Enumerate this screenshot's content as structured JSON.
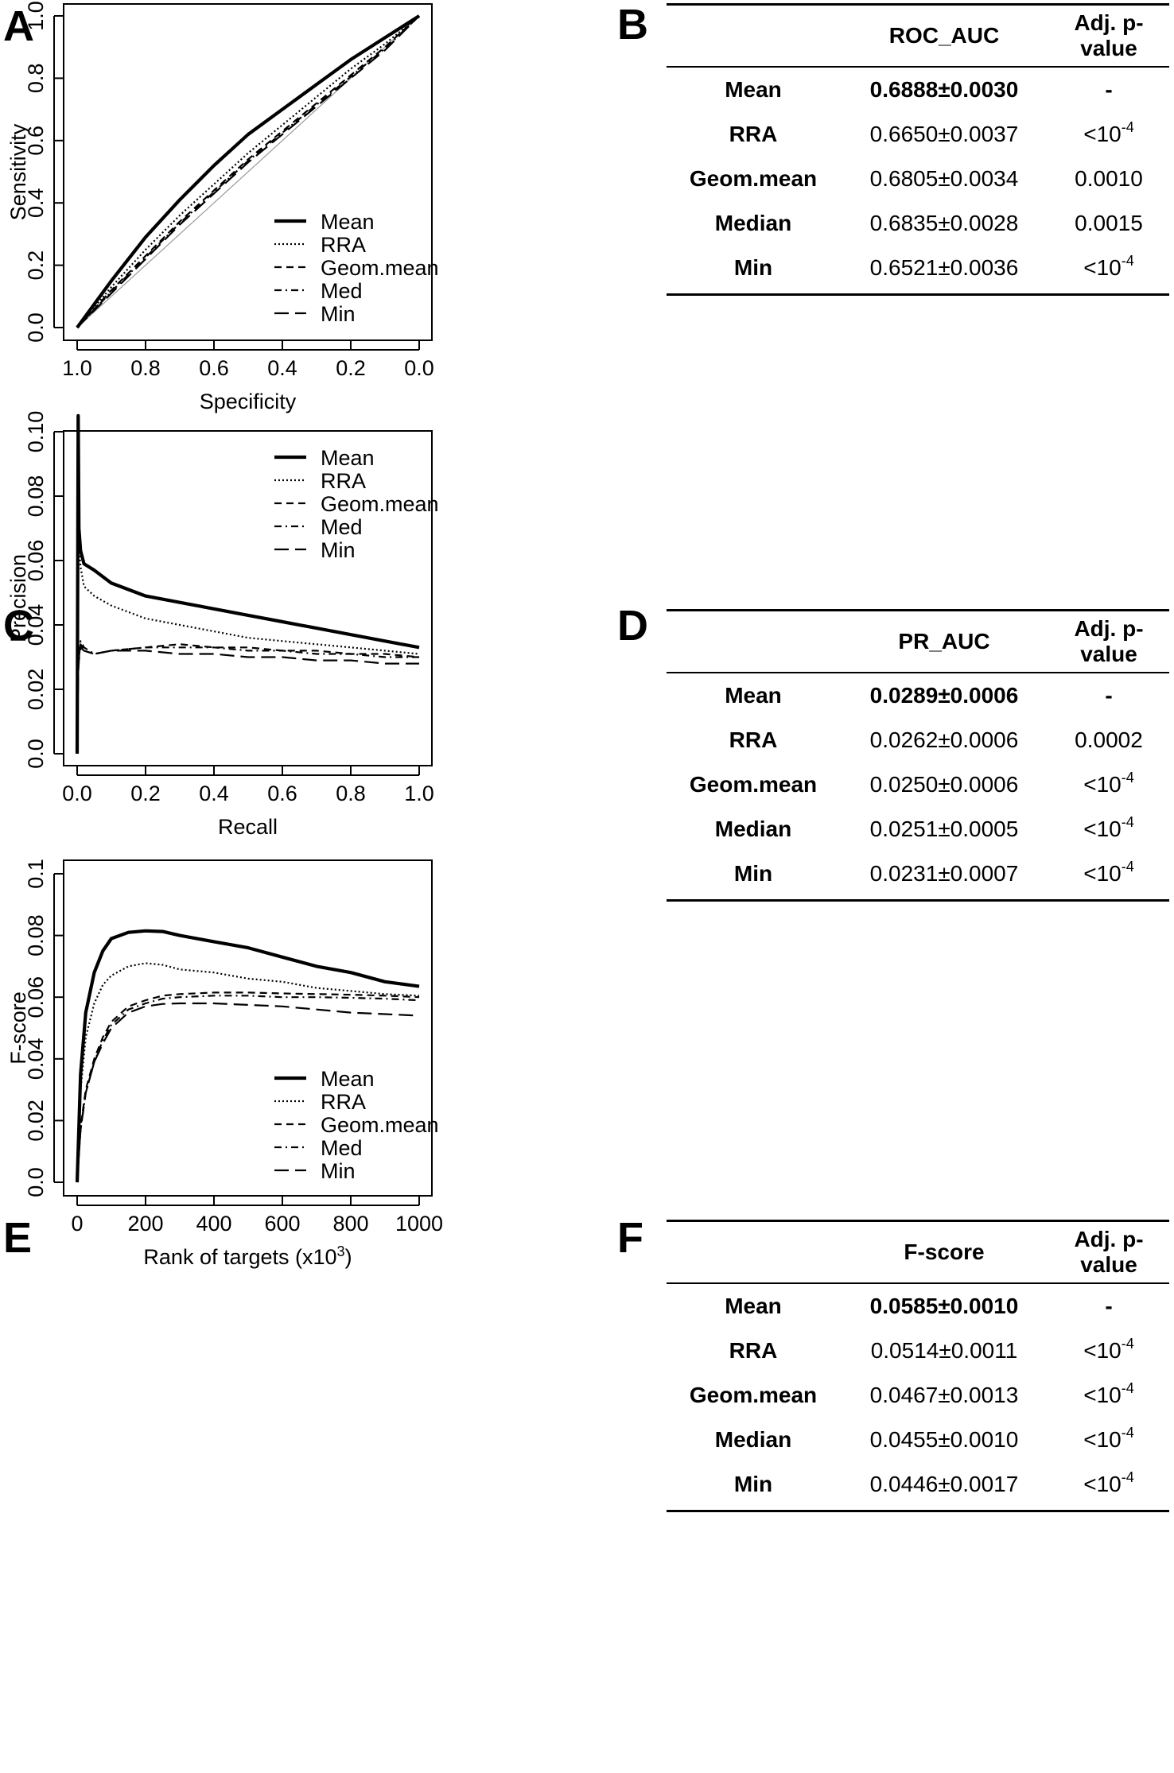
{
  "panels": {
    "A": "A",
    "B": "B",
    "C": "C",
    "D": "D",
    "E": "E",
    "F": "F"
  },
  "chart_data": [
    {
      "id": "A",
      "type": "line",
      "xlabel": "Specificity",
      "ylabel": "Sensitivity",
      "xlim": [
        1.0,
        0.0
      ],
      "ylim": [
        0.0,
        1.0
      ],
      "xticks": [
        "1.0",
        "0.8",
        "0.6",
        "0.4",
        "0.2",
        "0.0"
      ],
      "yticks": [
        "0.0",
        "0.2",
        "0.4",
        "0.6",
        "0.8",
        "1.0"
      ],
      "legend_position": "bottom-right",
      "reference_line": true,
      "x": [
        1.0,
        0.9,
        0.8,
        0.7,
        0.6,
        0.5,
        0.4,
        0.3,
        0.2,
        0.1,
        0.0
      ],
      "series": [
        {
          "name": "Mean",
          "style": "solid-thick",
          "values": [
            0.0,
            0.15,
            0.29,
            0.41,
            0.52,
            0.62,
            0.7,
            0.78,
            0.86,
            0.93,
            1.0
          ]
        },
        {
          "name": "RRA",
          "style": "dotted",
          "values": [
            0.0,
            0.13,
            0.25,
            0.36,
            0.46,
            0.56,
            0.65,
            0.74,
            0.83,
            0.91,
            1.0
          ]
        },
        {
          "name": "Geom.mean",
          "style": "dashed",
          "values": [
            0.0,
            0.12,
            0.23,
            0.34,
            0.44,
            0.54,
            0.63,
            0.72,
            0.81,
            0.9,
            1.0
          ]
        },
        {
          "name": "Med",
          "style": "dashdot",
          "values": [
            0.0,
            0.115,
            0.225,
            0.335,
            0.435,
            0.535,
            0.625,
            0.715,
            0.805,
            0.895,
            1.0
          ]
        },
        {
          "name": "Min",
          "style": "longdash",
          "values": [
            0.0,
            0.11,
            0.22,
            0.33,
            0.43,
            0.53,
            0.62,
            0.71,
            0.8,
            0.89,
            1.0
          ]
        }
      ]
    },
    {
      "id": "C",
      "type": "line",
      "xlabel": "Recall",
      "ylabel": "Precision",
      "xlim": [
        0.0,
        1.0
      ],
      "ylim": [
        0.0,
        0.1
      ],
      "xticks": [
        "0.0",
        "0.2",
        "0.4",
        "0.6",
        "0.8",
        "1.0"
      ],
      "yticks": [
        "0.0",
        "0.02",
        "0.04",
        "0.06",
        "0.08",
        "0.10"
      ],
      "legend_position": "top-right",
      "x": [
        0.0,
        0.003,
        0.005,
        0.01,
        0.02,
        0.05,
        0.1,
        0.2,
        0.3,
        0.4,
        0.5,
        0.6,
        0.7,
        0.8,
        0.9,
        1.0
      ],
      "series": [
        {
          "name": "Mean",
          "style": "solid-thick",
          "values": [
            0.0,
            0.105,
            0.07,
            0.063,
            0.059,
            0.057,
            0.053,
            0.049,
            0.047,
            0.045,
            0.043,
            0.041,
            0.039,
            0.037,
            0.035,
            0.033
          ]
        },
        {
          "name": "RRA",
          "style": "dotted",
          "values": [
            0.0,
            0.09,
            0.065,
            0.058,
            0.052,
            0.049,
            0.046,
            0.042,
            0.04,
            0.038,
            0.036,
            0.035,
            0.034,
            0.033,
            0.032,
            0.031
          ]
        },
        {
          "name": "Geom.mean",
          "style": "dashed",
          "values": [
            0.0,
            0.026,
            0.03,
            0.034,
            0.032,
            0.031,
            0.032,
            0.033,
            0.034,
            0.033,
            0.033,
            0.032,
            0.032,
            0.031,
            0.031,
            0.03
          ]
        },
        {
          "name": "Med",
          "style": "dashdot",
          "values": [
            0.0,
            0.027,
            0.031,
            0.035,
            0.033,
            0.031,
            0.032,
            0.033,
            0.033,
            0.033,
            0.032,
            0.032,
            0.031,
            0.031,
            0.03,
            0.03
          ]
        },
        {
          "name": "Min",
          "style": "longdash",
          "values": [
            0.0,
            0.025,
            0.029,
            0.033,
            0.032,
            0.031,
            0.032,
            0.032,
            0.031,
            0.031,
            0.03,
            0.03,
            0.029,
            0.029,
            0.028,
            0.028
          ]
        }
      ]
    },
    {
      "id": "E",
      "type": "line",
      "xlabel": "Rank of targets (x10",
      "xlabel_sup": "3",
      "xlabel_end": ")",
      "ylabel": "F-score",
      "xlim": [
        0,
        1000
      ],
      "ylim": [
        0.0,
        0.1
      ],
      "xticks": [
        "0",
        "200",
        "400",
        "600",
        "800",
        "1000"
      ],
      "yticks": [
        "0.0",
        "0.02",
        "0.04",
        "0.06",
        "0.08",
        "0.1"
      ],
      "legend_position": "bottom-right",
      "x": [
        0,
        10,
        25,
        50,
        75,
        100,
        150,
        200,
        250,
        300,
        400,
        500,
        600,
        700,
        800,
        900,
        1000
      ],
      "series": [
        {
          "name": "Mean",
          "style": "solid-thick",
          "values": [
            0.0,
            0.035,
            0.055,
            0.068,
            0.075,
            0.079,
            0.081,
            0.0815,
            0.0813,
            0.08,
            0.078,
            0.076,
            0.073,
            0.07,
            0.068,
            0.065,
            0.0635
          ]
        },
        {
          "name": "RRA",
          "style": "dotted",
          "values": [
            0.0,
            0.03,
            0.047,
            0.058,
            0.064,
            0.067,
            0.07,
            0.071,
            0.0705,
            0.069,
            0.068,
            0.066,
            0.065,
            0.063,
            0.062,
            0.061,
            0.0605
          ]
        },
        {
          "name": "Geom.mean",
          "style": "dashed",
          "values": [
            0.0,
            0.018,
            0.03,
            0.04,
            0.047,
            0.052,
            0.057,
            0.059,
            0.0605,
            0.061,
            0.0615,
            0.0615,
            0.0612,
            0.061,
            0.0608,
            0.0605,
            0.06
          ]
        },
        {
          "name": "Med",
          "style": "dashdot",
          "values": [
            0.0,
            0.017,
            0.029,
            0.039,
            0.046,
            0.051,
            0.056,
            0.058,
            0.0595,
            0.06,
            0.0605,
            0.0605,
            0.06,
            0.06,
            0.0598,
            0.0595,
            0.059
          ]
        },
        {
          "name": "Min",
          "style": "longdash",
          "values": [
            0.0,
            0.017,
            0.029,
            0.039,
            0.045,
            0.05,
            0.055,
            0.057,
            0.0578,
            0.058,
            0.058,
            0.0575,
            0.057,
            0.056,
            0.055,
            0.0545,
            0.054
          ]
        }
      ]
    }
  ],
  "tables": {
    "B": {
      "header": [
        "",
        "ROC_AUC",
        "Adj. p-value"
      ],
      "rows": [
        {
          "method": "Mean",
          "value": "0.6888±0.0030",
          "p": "-",
          "p_sup": ""
        },
        {
          "method": "RRA",
          "value": "0.6650±0.0037",
          "p": "<10",
          "p_sup": "-4"
        },
        {
          "method": "Geom.mean",
          "value": "0.6805±0.0034",
          "p": "0.0010",
          "p_sup": ""
        },
        {
          "method": "Median",
          "value": "0.6835±0.0028",
          "p": "0.0015",
          "p_sup": ""
        },
        {
          "method": "Min",
          "value": "0.6521±0.0036",
          "p": "<10",
          "p_sup": "-4"
        }
      ]
    },
    "D": {
      "header": [
        "",
        "PR_AUC",
        "Adj. p-value"
      ],
      "rows": [
        {
          "method": "Mean",
          "value": "0.0289±0.0006",
          "p": "-",
          "p_sup": ""
        },
        {
          "method": "RRA",
          "value": "0.0262±0.0006",
          "p": "0.0002",
          "p_sup": ""
        },
        {
          "method": "Geom.mean",
          "value": "0.0250±0.0006",
          "p": "<10",
          "p_sup": "-4"
        },
        {
          "method": "Median",
          "value": "0.0251±0.0005",
          "p": "<10",
          "p_sup": "-4"
        },
        {
          "method": "Min",
          "value": "0.0231±0.0007",
          "p": "<10",
          "p_sup": "-4"
        }
      ]
    },
    "F": {
      "header": [
        "",
        "F-score",
        "Adj. p-value"
      ],
      "rows": [
        {
          "method": "Mean",
          "value": "0.0585±0.0010",
          "p": "-",
          "p_sup": ""
        },
        {
          "method": "RRA",
          "value": "0.0514±0.0011",
          "p": "<10",
          "p_sup": "-4"
        },
        {
          "method": "Geom.mean",
          "value": "0.0467±0.0013",
          "p": "<10",
          "p_sup": "-4"
        },
        {
          "method": "Median",
          "value": "0.0455±0.0010",
          "p": "<10",
          "p_sup": "-4"
        },
        {
          "method": "Min",
          "value": "0.0446±0.0017",
          "p": "<10",
          "p_sup": "-4"
        }
      ]
    }
  }
}
